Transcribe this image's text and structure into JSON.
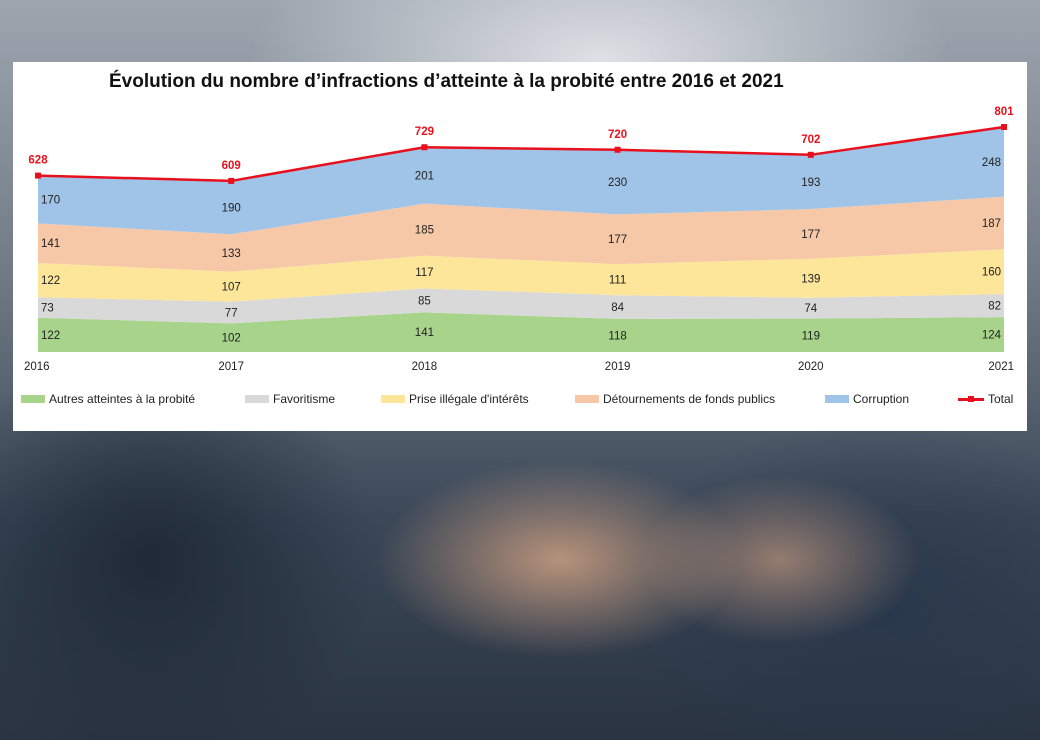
{
  "title": "Évolution du nombre d’infractions d’atteinte à la probité entre 2016 et 2021",
  "chart_data": {
    "type": "area",
    "stacked": true,
    "title": "Évolution du nombre d’infractions d’atteinte à la probité entre 2016 et 2021",
    "x": [
      "2016",
      "2017",
      "2018",
      "2019",
      "2020",
      "2021"
    ],
    "ylim": [
      0,
      801
    ],
    "grid": false,
    "legend_position": "bottom",
    "series": [
      {
        "name": "Autres atteintes à la probité",
        "values": [
          122,
          102,
          141,
          118,
          119,
          124
        ],
        "color": "#a7d48a",
        "kind": "area"
      },
      {
        "name": "Favoritisme",
        "values": [
          73,
          77,
          85,
          84,
          74,
          82
        ],
        "color": "#d9d9d9",
        "kind": "area"
      },
      {
        "name": "Prise illégale d'intérêts",
        "values": [
          122,
          107,
          117,
          111,
          139,
          160
        ],
        "color": "#fde59a",
        "kind": "area"
      },
      {
        "name": "Détournements de fonds publics",
        "values": [
          141,
          133,
          185,
          177,
          177,
          187
        ],
        "color": "#f6c8a8",
        "kind": "area"
      },
      {
        "name": "Corruption",
        "values": [
          170,
          190,
          201,
          230,
          193,
          248
        ],
        "color": "#a0c4e8",
        "kind": "area"
      },
      {
        "name": "Total",
        "values": [
          628,
          609,
          729,
          720,
          702,
          801
        ],
        "color": "#e8101d",
        "kind": "line"
      }
    ]
  }
}
